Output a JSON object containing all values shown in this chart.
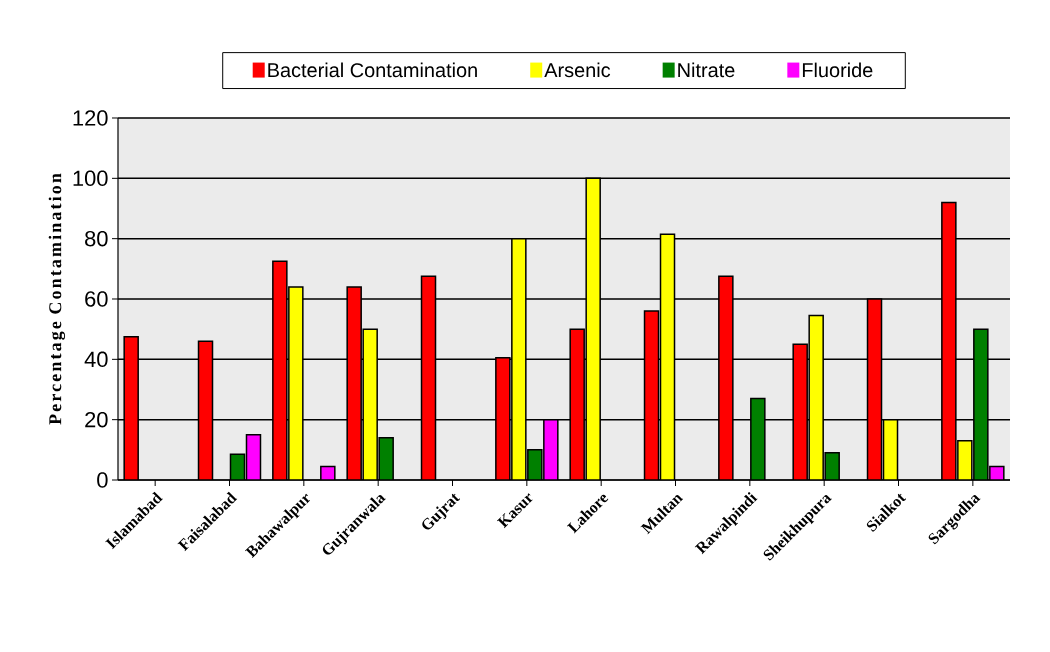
{
  "chart_data": {
    "type": "bar",
    "ylabel": "Percentage Contamination",
    "categories": [
      "Islamabad",
      "Faisalabad",
      "Bahawalpur",
      "Gujranwala",
      "Gujrat",
      "Kasur",
      "Lahore",
      "Multan",
      "Rawalpindi",
      "Sheikhupura",
      "Sialkot",
      "Sargodha"
    ],
    "series": [
      {
        "name": "Bacterial Contamination",
        "color": "#ff0000",
        "values": [
          47.5,
          46,
          72.5,
          64,
          67.5,
          40.5,
          50,
          56,
          67.5,
          45,
          60,
          92
        ]
      },
      {
        "name": "Arsenic",
        "color": "#ffff00",
        "values": [
          null,
          null,
          64,
          50,
          null,
          80,
          100,
          81.5,
          null,
          54.5,
          20,
          13
        ]
      },
      {
        "name": "Nitrate",
        "color": "#008000",
        "values": [
          null,
          8.5,
          null,
          14,
          null,
          10,
          null,
          null,
          27,
          9,
          null,
          50
        ]
      },
      {
        "name": "Fluoride",
        "color": "#ff00ff",
        "values": [
          null,
          15,
          4.5,
          null,
          null,
          20,
          null,
          null,
          null,
          null,
          null,
          4.5
        ]
      }
    ],
    "ylim": [
      0,
      120
    ],
    "yticks": [
      0,
      20,
      40,
      60,
      80,
      100,
      120
    ],
    "grid": "y",
    "legend": "top"
  }
}
